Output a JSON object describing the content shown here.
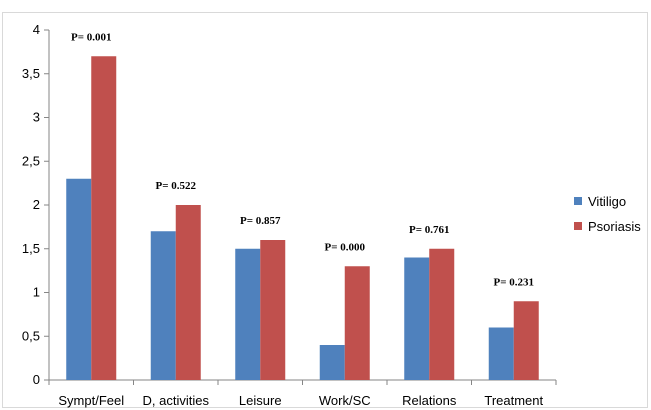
{
  "chart_data": {
    "type": "bar",
    "categories": [
      "Sympt/Feel",
      "D, activities",
      "Leisure",
      "Work/SC",
      "Relations",
      "Treatment"
    ],
    "series": [
      {
        "name": "Vitiligo",
        "color": "#4f81bd",
        "values": [
          2.3,
          1.7,
          1.5,
          0.4,
          1.4,
          0.6
        ]
      },
      {
        "name": "Psoriasis",
        "color": "#c0504d",
        "values": [
          3.7,
          2.0,
          1.6,
          1.3,
          1.5,
          0.9
        ]
      }
    ],
    "annotations": [
      "P= 0.001",
      "P= 0.522",
      "P= 0.857",
      "P= 0.000",
      "P= 0.761",
      "P= 0.231"
    ],
    "ylim": [
      0,
      4
    ],
    "yticks": [
      "0",
      "0,5",
      "1",
      "1,5",
      "2",
      "2,5",
      "3",
      "3,5",
      "4"
    ],
    "ytick_values": [
      0,
      0.5,
      1,
      1.5,
      2,
      2.5,
      3,
      3.5,
      4
    ],
    "grid": false,
    "legend_position": "right",
    "axis_color": "#868686"
  }
}
